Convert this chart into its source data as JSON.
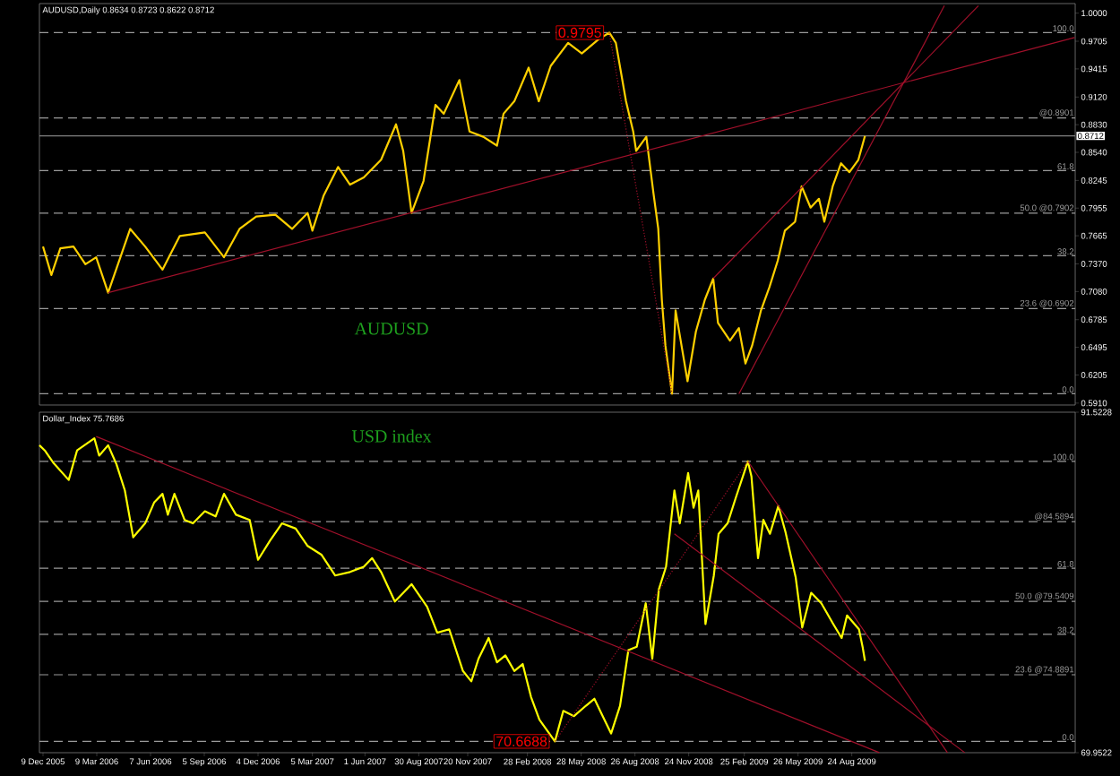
{
  "chart_data": [
    {
      "type": "line",
      "x": [
        "2005-12-09",
        "2005-12-23",
        "2006-01-07",
        "2006-01-29",
        "2006-02-18",
        "2006-03-08",
        "2006-03-28",
        "2006-05-04",
        "2006-05-29",
        "2006-06-27",
        "2006-07-26",
        "2006-09-06",
        "2006-10-08",
        "2006-11-03",
        "2006-12-01",
        "2007-01-02",
        "2007-01-30",
        "2007-02-25",
        "2007-03-05",
        "2007-03-24",
        "2007-04-17",
        "2007-05-07",
        "2007-05-30",
        "2007-06-28",
        "2007-07-23",
        "2007-08-04",
        "2007-08-18",
        "2007-09-07",
        "2007-09-27",
        "2007-10-11",
        "2007-11-06",
        "2007-11-23",
        "2007-12-16",
        "2008-01-08",
        "2008-01-19",
        "2008-02-06",
        "2008-03-01",
        "2008-03-18",
        "2008-04-07",
        "2008-05-06",
        "2008-05-29",
        "2008-06-26",
        "2008-07-14",
        "2008-07-25",
        "2008-08-11",
        "2008-08-23",
        "2008-08-28",
        "2008-09-14",
        "2008-09-26",
        "2008-10-04",
        "2008-10-10",
        "2008-10-16",
        "2008-10-27",
        "2008-11-02",
        "2008-11-13",
        "2008-11-22",
        "2008-12-06",
        "2008-12-21",
        "2009-01-04",
        "2009-01-12",
        "2009-02-01",
        "2009-02-16",
        "2009-02-27",
        "2009-03-10",
        "2009-03-25",
        "2009-04-08",
        "2009-04-22",
        "2009-05-04",
        "2009-05-21",
        "2009-06-01",
        "2009-06-16",
        "2009-06-30",
        "2009-07-09",
        "2009-07-23",
        "2009-08-06",
        "2009-08-20",
        "2009-09-04",
        "2009-09-15"
      ],
      "series": [
        {
          "color": "#ffd000",
          "values": [
            0.7552,
            0.7254,
            0.7533,
            0.7552,
            0.7366,
            0.744,
            0.7068,
            0.7737,
            0.7552,
            0.731,
            0.7663,
            0.77,
            0.744,
            0.7737,
            0.7867,
            0.7886,
            0.7737,
            0.7904,
            0.7719,
            0.809,
            0.8387,
            0.8201,
            0.8276,
            0.8462,
            0.8834,
            0.8555,
            0.7904,
            0.8239,
            0.9038,
            0.8945,
            0.9298,
            0.8759,
            0.8703,
            0.861,
            0.8945,
            0.9075,
            0.9428,
            0.9075,
            0.9447,
            0.9688,
            0.9577,
            0.9725,
            0.9795,
            0.9688,
            0.9075,
            0.8759,
            0.8555,
            0.8703,
            0.8109,
            0.7737,
            0.6994,
            0.6511,
            0.6008,
            0.6883,
            0.6474,
            0.6139,
            0.666,
            0.6994,
            0.7217,
            0.6752,
            0.6566,
            0.6697,
            0.6325,
            0.6511,
            0.6883,
            0.7124,
            0.7403,
            0.7719,
            0.7812,
            0.8183,
            0.796,
            0.8053,
            0.7812,
            0.8183,
            0.8425,
            0.8332,
            0.8462,
            0.8712
          ]
        },
        {
          "type": "line",
          "color": "#a0102a",
          "x": [
            "2006-03-28",
            "2010-09-01"
          ],
          "values": [
            0.7068,
            0.9744
          ]
        },
        {
          "type": "line",
          "color": "#a0102a",
          "line_style": "dotted",
          "x": [
            "2008-07-14",
            "2008-10-27"
          ],
          "values": [
            0.9795,
            0.6008
          ]
        },
        {
          "type": "line",
          "color": "#a0102a",
          "x": [
            "2009-01-04",
            "2010-03-24"
          ],
          "values": [
            0.7217,
            1.0078
          ]
        },
        {
          "type": "line",
          "color": "#a0102a",
          "x": [
            "2009-02-16",
            "2010-01-26"
          ],
          "values": [
            0.6008,
            1.0078
          ]
        }
      ],
      "xlim": [
        "2005-12-03",
        "2010-09-02"
      ],
      "ylim": [
        0.589,
        1.01
      ],
      "yticks": [
        {
          "value": 1.0,
          "label": "1.0000"
        },
        0.9705,
        0.9415,
        {
          "value": 0.912,
          "label": "0.9120"
        },
        {
          "value": 0.883,
          "label": "0.8830"
        },
        {
          "value": 0.854,
          "label": "0.8540"
        },
        0.8245,
        0.7955,
        0.7665,
        {
          "value": 0.737,
          "label": "0.7370"
        },
        {
          "value": 0.708,
          "label": "0.7080"
        },
        0.6785,
        0.6495,
        0.6205,
        {
          "value": 0.591,
          "label": "0.5910"
        }
      ],
      "tick_labels": "y",
      "ref_lines": [
        {
          "axis": "y",
          "value": 0.9795,
          "color": "#9a9a9a",
          "line_style": "dashed"
        },
        {
          "axis": "y",
          "value": 0.8901,
          "label": "@0.8901",
          "color": "#9a9a9a",
          "line_style": "dashed"
        },
        {
          "axis": "y",
          "value": 0.8348,
          "color": "#9a9a9a",
          "line_style": "dashed"
        },
        {
          "axis": "y",
          "value": 0.7902,
          "label": "50.0 @0.7902",
          "color": "#9a9a9a",
          "line_style": "dashed"
        },
        {
          "axis": "y",
          "value": 0.7455,
          "color": "#9a9a9a",
          "line_style": "dashed"
        },
        {
          "axis": "y",
          "value": 0.6902,
          "label": "23.6 @0.6902",
          "color": "#9a9a9a",
          "line_style": "dashed"
        },
        {
          "axis": "y",
          "value": 0.6008,
          "color": "#9a9a9a",
          "line_style": "dashed"
        },
        {
          "axis": "y",
          "value": 0.8712,
          "label": "0.8712",
          "color": "#808080",
          "line_style": "solid"
        }
      ],
      "annotations": [
        "AUDUSD,Daily 0.8634 0.8723 0.8622 0.8712",
        "AUDUSD",
        {
          "text": "0.9795",
          "x": "2008-07-14",
          "y": 0.9795
        },
        {
          "text": "100.0",
          "x": "2010-09-02",
          "y": 0.9795
        },
        {
          "text": "61.8",
          "x": "2010-09-02",
          "y": 0.8348
        },
        {
          "text": "38.2",
          "x": "2010-09-02",
          "y": 0.7455
        },
        {
          "text": "0.0",
          "x": "2010-09-02",
          "y": 0.6008
        }
      ]
    },
    {
      "type": "line",
      "x": [
        "2005-12-03",
        "2005-12-12",
        "2005-12-26",
        "2006-01-21",
        "2006-02-04",
        "2006-03-05",
        "2006-03-13",
        "2006-03-28",
        "2006-04-11",
        "2006-04-25",
        "2006-05-09",
        "2006-05-29",
        "2006-06-13",
        "2006-06-27",
        "2006-07-06",
        "2006-07-17",
        "2006-08-03",
        "2006-08-17",
        "2006-09-06",
        "2006-09-24",
        "2006-10-08",
        "2006-10-28",
        "2006-11-20",
        "2006-12-04",
        "2006-12-24",
        "2007-01-13",
        "2007-02-05",
        "2007-02-25",
        "2007-03-20",
        "2007-04-12",
        "2007-05-07",
        "2007-05-30",
        "2007-06-13",
        "2007-06-28",
        "2007-07-21",
        "2007-08-18",
        "2007-09-13",
        "2007-09-30",
        "2007-10-20",
        "2007-11-12",
        "2007-11-26",
        "2007-12-08",
        "2007-12-25",
        "2008-01-08",
        "2008-01-22",
        "2008-02-06",
        "2008-02-20",
        "2008-03-05",
        "2008-03-19",
        "2008-04-14",
        "2008-04-28",
        "2008-05-16",
        "2008-06-05",
        "2008-06-19",
        "2008-07-03",
        "2008-07-17",
        "2008-08-01",
        "2008-08-15",
        "2008-08-29",
        "2008-09-13",
        "2008-09-24",
        "2008-10-05",
        "2008-10-17",
        "2008-10-31",
        "2008-11-09",
        "2008-11-23",
        "2008-12-02",
        "2008-12-10",
        "2008-12-22",
        "2009-01-05",
        "2009-01-13",
        "2009-01-28",
        "2009-02-11",
        "2009-03-03",
        "2009-03-09",
        "2009-03-20",
        "2009-03-29",
        "2009-04-09",
        "2009-04-23",
        "2009-05-05",
        "2009-05-22",
        "2009-06-02",
        "2009-06-17",
        "2009-07-04",
        "2009-07-24",
        "2009-08-07",
        "2009-08-16",
        "2009-09-05",
        "2009-09-11",
        "2009-09-15"
      ],
      "series": [
        {
          "color": "#ffff00",
          "values": [
            89.43,
            89.1,
            88.33,
            87.23,
            89.1,
            89.87,
            88.77,
            89.43,
            88.22,
            86.57,
            83.6,
            84.48,
            85.8,
            86.35,
            85.03,
            86.35,
            84.7,
            84.48,
            85.25,
            84.92,
            86.35,
            85.03,
            84.7,
            82.17,
            83.38,
            84.48,
            84.15,
            83.05,
            82.5,
            81.18,
            81.4,
            81.73,
            82.28,
            81.4,
            79.53,
            80.63,
            79.2,
            77.55,
            77.77,
            75.13,
            74.47,
            75.9,
            77.22,
            75.68,
            76.12,
            75.13,
            75.57,
            73.48,
            72.05,
            70.6688,
            72.6,
            72.27,
            72.93,
            73.37,
            72.27,
            71.17,
            72.93,
            76.45,
            76.67,
            79.42,
            75.9,
            80.3,
            81.73,
            86.57,
            84.48,
            87.67,
            85.47,
            86.57,
            78.1,
            81.18,
            83.82,
            84.48,
            86.13,
            88.413,
            87.45,
            82.28,
            84.7,
            83.82,
            85.58,
            83.93,
            81.07,
            77.88,
            80.08,
            79.42,
            78.1,
            77.22,
            78.65,
            77.77,
            76.67,
            75.7686
          ]
        },
        {
          "type": "line",
          "color": "#a0102a",
          "x": [
            "2006-03-08",
            "2009-10-09"
          ],
          "values": [
            89.98,
            69.96
          ]
        },
        {
          "type": "line",
          "color": "#a0102a",
          "line_style": "dotted",
          "x": [
            "2008-04-14",
            "2009-03-03"
          ],
          "values": [
            70.6688,
            88.413
          ]
        },
        {
          "type": "line",
          "color": "#a0102a",
          "x": [
            "2009-03-03",
            "2010-01-31"
          ],
          "values": [
            88.413,
            69.96
          ]
        },
        {
          "type": "line",
          "color": "#a0102a",
          "x": [
            "2008-10-31",
            "2010-03-01"
          ],
          "values": [
            83.82,
            69.96
          ]
        }
      ],
      "xlim": [
        "2005-12-03",
        "2010-09-02"
      ],
      "ylim": [
        69.9522,
        91.5228
      ],
      "yticks": [
        91.5228,
        69.9522
      ],
      "xticks": [
        {
          "value": "2005-12-09",
          "label": "9 Dec 2005"
        },
        {
          "value": "2006-03-09",
          "label": "9 Mar 2006"
        },
        {
          "value": "2006-06-07",
          "label": "7 Jun 2006"
        },
        {
          "value": "2006-09-05",
          "label": "5 Sep 2006"
        },
        {
          "value": "2006-12-04",
          "label": "4 Dec 2006"
        },
        {
          "value": "2007-03-05",
          "label": "5 Mar 2007"
        },
        {
          "value": "2007-06-01",
          "label": "1 Jun 2007"
        },
        {
          "value": "2007-08-30",
          "label": "30 Aug 2007"
        },
        {
          "value": "2007-11-20",
          "label": "20 Nov 2007"
        },
        {
          "value": "2008-02-28",
          "label": "28 Feb 2008"
        },
        {
          "value": "2008-05-28",
          "label": "28 May 2008"
        },
        {
          "value": "2008-08-26",
          "label": "26 Aug 2008"
        },
        {
          "value": "2008-11-24",
          "label": "24 Nov 2008"
        },
        {
          "value": "2009-02-25",
          "label": "25 Feb 2009"
        },
        {
          "value": "2009-05-26",
          "label": "26 May 2009"
        },
        {
          "value": "2009-08-24",
          "label": "24 Aug 2009"
        }
      ],
      "ref_lines": [
        {
          "axis": "y",
          "value": 88.413,
          "color": "#9a9a9a",
          "line_style": "dashed"
        },
        {
          "axis": "y",
          "value": 84.5894,
          "label": "@84.5894",
          "color": "#9a9a9a",
          "line_style": "dashed"
        },
        {
          "axis": "y",
          "value": 81.635,
          "color": "#9a9a9a",
          "line_style": "dashed"
        },
        {
          "axis": "y",
          "value": 79.5409,
          "label": "50.0 @79.5409",
          "color": "#9a9a9a",
          "line_style": "dashed"
        },
        {
          "axis": "y",
          "value": 77.447,
          "color": "#9a9a9a",
          "line_style": "dashed"
        },
        {
          "axis": "y",
          "value": 74.8891,
          "label": "23.6 @74.8891",
          "color": "#9a9a9a",
          "line_style": "dashed"
        },
        {
          "axis": "y",
          "value": 70.6688,
          "color": "#9a9a9a",
          "line_style": "dashed"
        }
      ],
      "annotations": [
        "Dollar_Index 75.7686",
        "USD index",
        {
          "text": "70.6688",
          "x": "2008-04-14",
          "y": 70.6688
        },
        {
          "text": "100.0",
          "x": "2010-09-02",
          "y": 88.413
        },
        {
          "text": "61.8",
          "x": "2010-09-02",
          "y": 81.635
        },
        {
          "text": "38.2",
          "x": "2010-09-02",
          "y": 77.447
        },
        {
          "text": "0.0",
          "x": "2010-09-02",
          "y": 70.6688
        }
      ]
    }
  ]
}
